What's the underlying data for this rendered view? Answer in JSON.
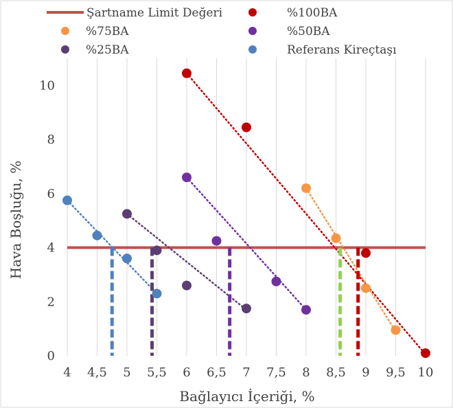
{
  "chart_data": {
    "type": "scatter",
    "xlabel": "Bağlayıcı İçeriği, %",
    "ylabel": "Hava Boşluğu, %",
    "xlim": [
      4,
      10
    ],
    "ylim": [
      0,
      11
    ],
    "x_ticks": [
      "4",
      "4,5",
      "5",
      "5,5",
      "6",
      "6,5",
      "7",
      "7,5",
      "8",
      "8,5",
      "9",
      "9,5",
      "10"
    ],
    "y_ticks": [
      "0",
      "2",
      "4",
      "6",
      "8",
      "10"
    ],
    "grid": "vertical",
    "legend_position": "top",
    "limit_line": {
      "name": "Şartname Limit Değeri",
      "y": 4,
      "color": "#c0504d"
    },
    "series": [
      {
        "name": "%100BA",
        "color": "#c00000",
        "x": [
          6,
          7,
          9,
          10
        ],
        "y": [
          10.45,
          8.45,
          3.8,
          0.1
        ],
        "trend_x": [
          6,
          10
        ],
        "trend_y": [
          10.45,
          0.05
        ]
      },
      {
        "name": "%75BA",
        "color": "#f79646",
        "x": [
          8,
          8.5,
          9,
          9.5
        ],
        "y": [
          6.2,
          4.35,
          2.5,
          0.95
        ],
        "trend_x": [
          8,
          9.5
        ],
        "trend_y": [
          6.2,
          0.9
        ]
      },
      {
        "name": "%50BA",
        "color": "#7030a0",
        "x": [
          6,
          6.5,
          7.5,
          8
        ],
        "y": [
          6.6,
          4.25,
          2.75,
          1.7
        ],
        "trend_x": [
          6,
          8
        ],
        "trend_y": [
          6.6,
          1.7
        ]
      },
      {
        "name": "%25BA",
        "color": "#5b3f72",
        "x": [
          5,
          5.5,
          6,
          7
        ],
        "y": [
          5.25,
          3.9,
          2.6,
          1.75
        ],
        "trend_x": [
          5,
          7
        ],
        "trend_y": [
          5.25,
          1.7
        ]
      },
      {
        "name": "Referans Kireçtaşı",
        "color": "#4f81bd",
        "x": [
          4,
          4.5,
          5,
          5.5
        ],
        "y": [
          5.75,
          4.45,
          3.6,
          2.3
        ],
        "trend_x": [
          4,
          5.5
        ],
        "trend_y": [
          5.75,
          2.3
        ]
      }
    ],
    "intersection_markers": [
      {
        "x": 4.75,
        "color": "#4f81bd"
      },
      {
        "x": 5.42,
        "color": "#5b3f72"
      },
      {
        "x": 6.72,
        "color": "#7030a0"
      },
      {
        "x": 8.57,
        "color": "#92d050"
      },
      {
        "x": 8.87,
        "color": "#c00000"
      }
    ]
  }
}
